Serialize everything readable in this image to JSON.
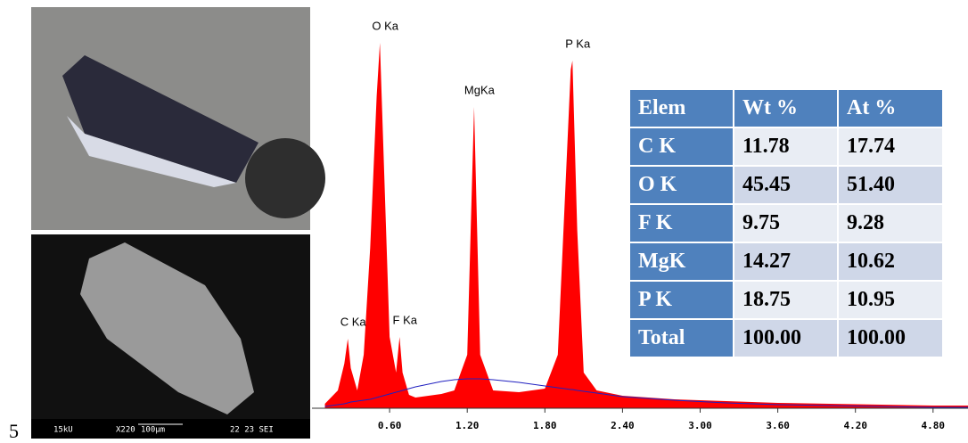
{
  "figure_label": "5",
  "sem_labels": [
    "15kU",
    "X220",
    "100µm",
    "22 23 SEI"
  ],
  "chart_data": {
    "type": "area",
    "x": [
      0.1,
      0.2,
      0.25,
      0.277,
      0.3,
      0.35,
      0.4,
      0.45,
      0.5,
      0.525,
      0.55,
      0.6,
      0.65,
      0.677,
      0.7,
      0.75,
      0.8,
      0.9,
      1.0,
      1.1,
      1.2,
      1.253,
      1.3,
      1.4,
      1.6,
      1.8,
      1.9,
      2.0,
      2.013,
      2.05,
      2.1,
      2.2,
      2.4,
      2.8,
      3.2,
      3.6,
      4.0,
      4.4,
      4.8,
      5.07
    ],
    "series": [
      {
        "color": "#ff0000",
        "values": [
          5,
          20,
          50,
          78,
          45,
          20,
          60,
          180,
          350,
          410,
          300,
          80,
          40,
          80,
          40,
          15,
          12,
          14,
          16,
          20,
          60,
          338,
          60,
          20,
          18,
          22,
          60,
          380,
          390,
          200,
          40,
          20,
          14,
          10,
          8,
          6,
          5,
          4,
          3,
          3
        ]
      },
      {
        "color": "#2020c0",
        "values": [
          2,
          4,
          5,
          6,
          7,
          8,
          9,
          10,
          12,
          13,
          14,
          16,
          18,
          19,
          20,
          22,
          24,
          27,
          30,
          32,
          33,
          33,
          33,
          32,
          29,
          25,
          23,
          21,
          21,
          20,
          19,
          17,
          13,
          9,
          6,
          4,
          3,
          2,
          1,
          1
        ]
      }
    ],
    "annotations": [
      {
        "text": "C Ka",
        "x": 0.277
      },
      {
        "text": "O Ka",
        "x": 0.525
      },
      {
        "text": "F Ka",
        "x": 0.677
      },
      {
        "text": "MgKa",
        "x": 1.253
      },
      {
        "text": "P Ka",
        "x": 2.013
      }
    ],
    "xlim": [
      0,
      5.07
    ],
    "ylim": [
      0,
      420
    ],
    "xticks": [
      {
        "value": 0.6,
        "label": "0.60"
      },
      {
        "value": 1.2,
        "label": "1.20"
      },
      {
        "value": 1.8,
        "label": "1.80"
      },
      {
        "value": 2.4,
        "label": "2.40"
      },
      {
        "value": 3.0,
        "label": "3.00"
      },
      {
        "value": 3.6,
        "label": "3.60"
      },
      {
        "value": 4.2,
        "label": "4.20"
      },
      {
        "value": 4.8,
        "label": "4.80"
      }
    ]
  },
  "table": {
    "header": [
      "Elem",
      "Wt %",
      "At %"
    ],
    "rows": [
      [
        "C K",
        "11.78",
        "17.74"
      ],
      [
        "O K",
        "45.45",
        "51.40"
      ],
      [
        "F K",
        "9.75",
        "9.28"
      ],
      [
        "MgK",
        "14.27",
        "10.62"
      ],
      [
        "P K",
        "18.75",
        "10.95"
      ],
      [
        "Total",
        "100.00",
        "100.00"
      ]
    ]
  }
}
